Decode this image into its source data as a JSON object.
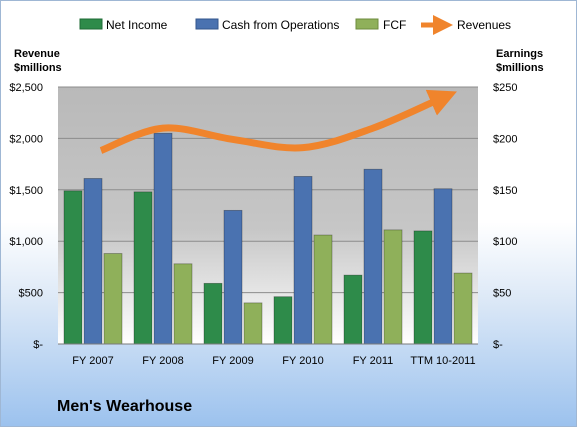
{
  "chart_data": {
    "type": "bar",
    "title": "Men's Wearhouse",
    "categories": [
      "FY 2007",
      "FY 2008",
      "FY 2009",
      "FY 2010",
      "FY 2011",
      "TTM 10-2011"
    ],
    "series": [
      {
        "name": "Net Income",
        "axis": "right",
        "type": "bar",
        "color": "#2e8b4a",
        "values": [
          149,
          148,
          59,
          46,
          67,
          110
        ]
      },
      {
        "name": "Cash from Operations",
        "axis": "right",
        "type": "bar",
        "color": "#4a72b0",
        "values": [
          161,
          205,
          130,
          163,
          170,
          151
        ]
      },
      {
        "name": "FCF",
        "axis": "right",
        "type": "bar",
        "color": "#8fb05a",
        "values": [
          88,
          78,
          40,
          106,
          111,
          69
        ]
      },
      {
        "name": "Revenues",
        "axis": "left",
        "type": "line",
        "color": "#f0842c",
        "values": [
          1882,
          2100,
          1990,
          1910,
          2100,
          2380
        ]
      }
    ],
    "left_axis": {
      "label_line1": "Revenue",
      "label_line2": "$millions",
      "ylim": [
        0,
        2500
      ],
      "ticks": [
        "$-",
        "$500",
        "$1,000",
        "$1,500",
        "$2,000",
        "$2,500"
      ]
    },
    "right_axis": {
      "label_line1": "Earnings",
      "label_line2": "$millions",
      "ylim": [
        0,
        250
      ],
      "ticks": [
        "$-",
        "$50",
        "$100",
        "$150",
        "$200",
        "$250"
      ]
    },
    "grid": true,
    "legend_position": "top"
  }
}
